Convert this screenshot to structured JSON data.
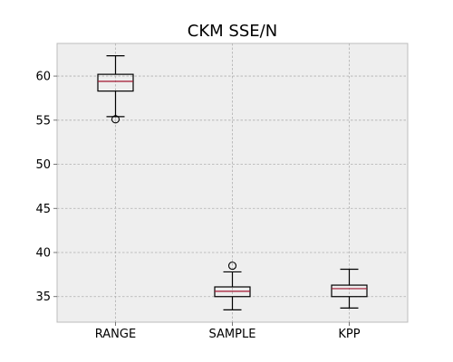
{
  "chart_data": {
    "type": "boxplot",
    "title": "CKM SSE/N",
    "xlabel": "",
    "ylabel": "",
    "categories": [
      "RANGE",
      "SAMPLE",
      "KPP"
    ],
    "boxes": [
      {
        "category": "RANGE",
        "whisker_low": 55.4,
        "q1": 58.3,
        "median": 59.4,
        "q3": 60.2,
        "whisker_high": 62.3,
        "outliers": [
          55.1
        ]
      },
      {
        "category": "SAMPLE",
        "whisker_low": 33.5,
        "q1": 35.0,
        "median": 35.6,
        "q3": 36.1,
        "whisker_high": 37.8,
        "outliers": [
          38.5
        ]
      },
      {
        "category": "KPP",
        "whisker_low": 33.7,
        "q1": 35.0,
        "median": 35.9,
        "q3": 36.3,
        "whisker_high": 38.1,
        "outliers": []
      }
    ],
    "ylim": [
      32.1,
      63.7
    ],
    "yticks": [
      35,
      40,
      45,
      50,
      55,
      60
    ],
    "grid": true,
    "colors": {
      "plot_background": "#eeeeee",
      "grid": "#b0b0b0",
      "box_edge": "#000000",
      "median": "#a2142f",
      "axes_edge": "#bcbcbc"
    }
  }
}
